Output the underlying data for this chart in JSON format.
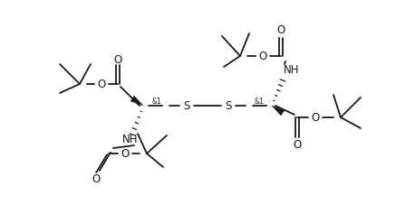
{
  "bg_color": "#ffffff",
  "line_color": "#1a1a1a",
  "lw": 1.3,
  "figsize": [
    4.58,
    2.37
  ],
  "dpi": 100,
  "xlim": [
    0,
    458
  ],
  "ylim": [
    0,
    237
  ]
}
